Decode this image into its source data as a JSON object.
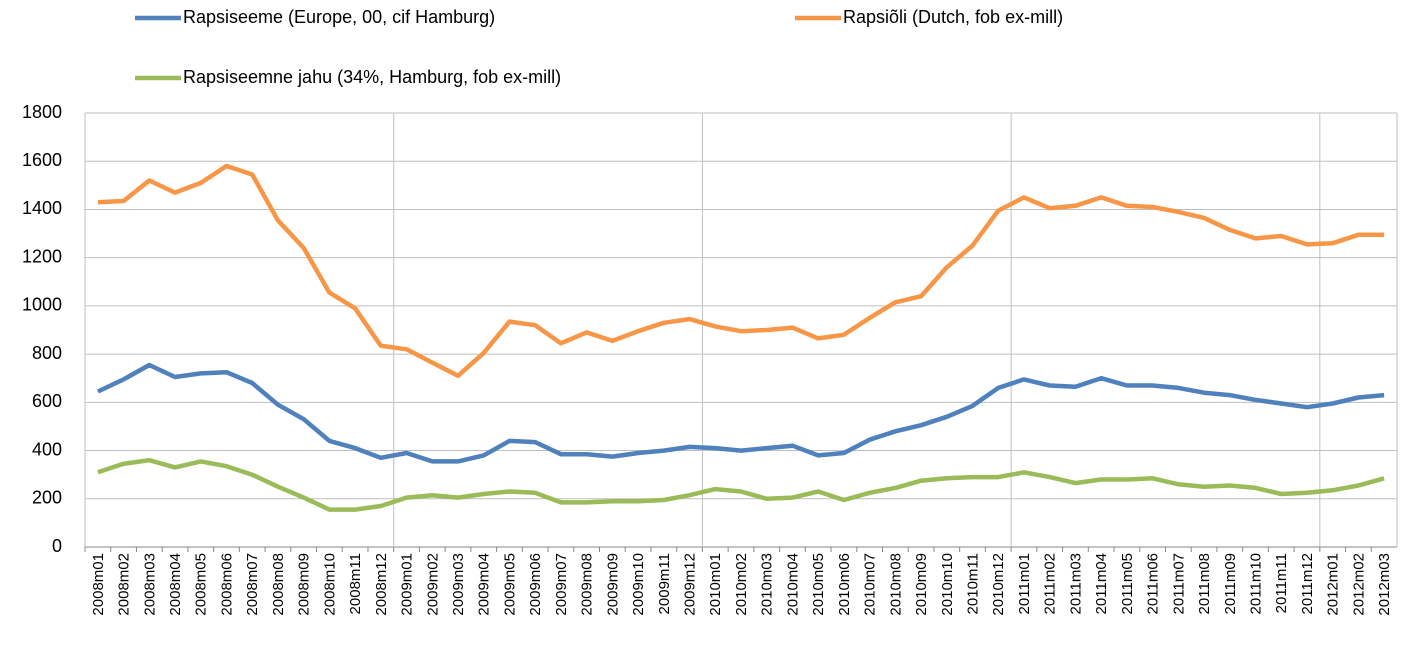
{
  "chart_data": {
    "type": "line",
    "categories": [
      "2008m01",
      "2008m02",
      "2008m03",
      "2008m04",
      "2008m05",
      "2008m06",
      "2008m07",
      "2008m08",
      "2008m09",
      "2008m10",
      "2008m11",
      "2008m12",
      "2009m01",
      "2009m02",
      "2009m03",
      "2009m04",
      "2009m05",
      "2009m06",
      "2009m07",
      "2009m08",
      "2009m09",
      "2009m10",
      "2009m11",
      "2009m12",
      "2010m01",
      "2010m02",
      "2010m03",
      "2010m04",
      "2010m05",
      "2010m06",
      "2010m07",
      "2010m08",
      "2010m09",
      "2010m10",
      "2010m11",
      "2010m12",
      "2011m01",
      "2011m02",
      "2011m03",
      "2011m04",
      "2011m05",
      "2011m06",
      "2011m07",
      "2011m08",
      "2011m09",
      "2011m10",
      "2011m11",
      "2011m12",
      "2012m01",
      "2012m02",
      "2012m03"
    ],
    "series": [
      {
        "name": "Rapsiseeme (Europe, 00, cif Hamburg)",
        "color": "#4f81bd",
        "values": [
          645,
          695,
          755,
          705,
          720,
          725,
          680,
          590,
          530,
          440,
          410,
          370,
          390,
          355,
          355,
          380,
          440,
          435,
          385,
          385,
          375,
          390,
          400,
          415,
          410,
          400,
          410,
          420,
          380,
          390,
          445,
          480,
          505,
          540,
          585,
          660,
          695,
          670,
          665,
          700,
          670,
          670,
          660,
          640,
          630,
          610,
          595,
          580,
          595,
          620,
          630
        ]
      },
      {
        "name": "Rapsiõli (Dutch, fob ex-mill)",
        "color": "#f79646",
        "values": [
          1430,
          1435,
          1520,
          1470,
          1510,
          1580,
          1545,
          1355,
          1240,
          1055,
          990,
          835,
          820,
          765,
          710,
          805,
          935,
          920,
          845,
          890,
          855,
          895,
          930,
          945,
          915,
          895,
          900,
          910,
          865,
          880,
          950,
          1015,
          1040,
          1160,
          1250,
          1395,
          1450,
          1405,
          1415,
          1450,
          1415,
          1410,
          1390,
          1365,
          1315,
          1280,
          1290,
          1255,
          1260,
          1295,
          1295
        ]
      },
      {
        "name": "Rapsiseemne jahu (34%, Hamburg, fob ex-mill)",
        "color": "#9bbb59",
        "values": [
          310,
          345,
          360,
          330,
          355,
          335,
          300,
          250,
          205,
          155,
          155,
          170,
          205,
          215,
          205,
          220,
          230,
          225,
          185,
          185,
          190,
          190,
          195,
          215,
          240,
          230,
          200,
          205,
          230,
          195,
          225,
          245,
          275,
          285,
          290,
          290,
          310,
          290,
          265,
          280,
          280,
          285,
          260,
          250,
          255,
          245,
          220,
          225,
          235,
          255,
          285
        ]
      }
    ],
    "ylim": [
      0,
      1800
    ],
    "yticks": [
      0,
      200,
      400,
      600,
      800,
      1000,
      1200,
      1400,
      1600,
      1800
    ],
    "grid": true
  }
}
